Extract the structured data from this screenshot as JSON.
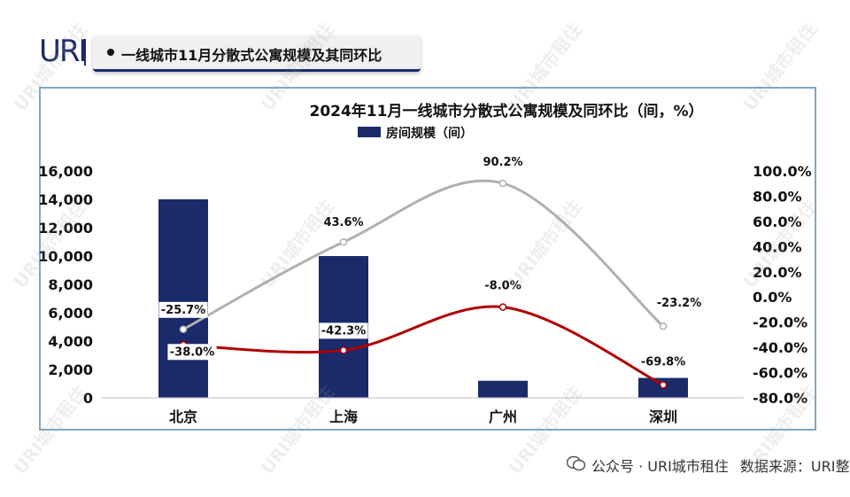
{
  "header": {
    "logo": "URI",
    "title": "一线城市11月分散式公寓规模及其同环比"
  },
  "watermark_text": "URI城市租住",
  "footer": {
    "account": "公众号 · URI城市租住",
    "source": "数据来源：URI整理"
  },
  "colors": {
    "bar": "#1a2a6b",
    "yoy_line": "#b0b0b0",
    "mom_line": "#b00000",
    "frame": "#7ea7c7"
  },
  "chart_data": {
    "type": "bar",
    "title": "2024年11月一线城市分散式公寓规模及同环比（间，%）",
    "categories": [
      "北京",
      "上海",
      "广州",
      "深圳"
    ],
    "series": [
      {
        "name": "房间规模（间）",
        "type": "bar",
        "axis": "left",
        "values": [
          14000,
          10000,
          1200,
          1400
        ]
      },
      {
        "type": "line",
        "axis": "right",
        "values": [
          -25.7,
          43.6,
          90.2,
          -23.2
        ],
        "labels": [
          "-25.7%",
          "43.6%",
          "90.2%",
          "-23.2%"
        ]
      },
      {
        "type": "line",
        "axis": "right",
        "values": [
          -38.0,
          -42.3,
          -8.0,
          -69.8
        ],
        "labels": [
          "-38.0%",
          "-42.3%",
          "-8.0%",
          "-69.8%"
        ]
      }
    ],
    "ylim_left": [
      0,
      16000
    ],
    "yticks_left": [
      "16,000",
      "14,000",
      "12,000",
      "10,000",
      "8,000",
      "6,000",
      "4,000",
      "2,000",
      "0"
    ],
    "ylim_right": [
      -80,
      100
    ],
    "yticks_right": [
      "100.0%",
      "80.0%",
      "60.0%",
      "40.0%",
      "20.0%",
      "0.0%",
      "-20.0%",
      "-40.0%",
      "-60.0%",
      "-80.0%"
    ],
    "legend": "top-center",
    "grid": false
  }
}
